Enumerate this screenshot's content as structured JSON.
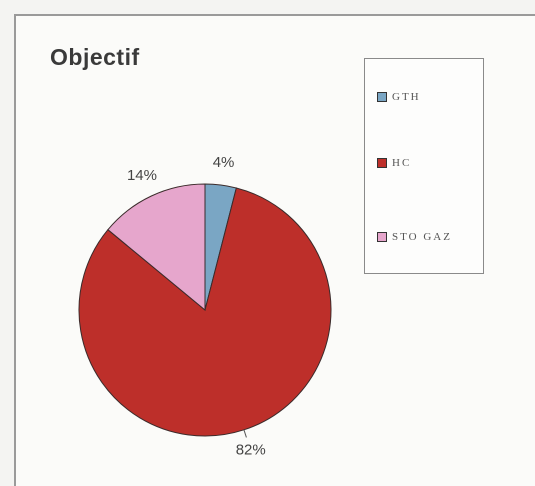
{
  "chart_data": {
    "type": "pie",
    "title": "Objectif",
    "categories": [
      "GTH",
      "HC",
      "STO GAZ"
    ],
    "values": [
      4,
      82,
      14
    ],
    "value_labels": [
      "4%",
      "82%",
      "14%"
    ],
    "legend_position": "right",
    "colors": {
      "GTH": "#7aa6c4",
      "HC": "#bd2f2a",
      "STO GAZ": "#e6a6cc"
    }
  },
  "legend": {
    "items": [
      {
        "label": "GTH",
        "color": "#7aa6c4"
      },
      {
        "label": "HC",
        "color": "#bd2f2a"
      },
      {
        "label": "STO GAZ",
        "color": "#e6a6cc"
      }
    ]
  }
}
